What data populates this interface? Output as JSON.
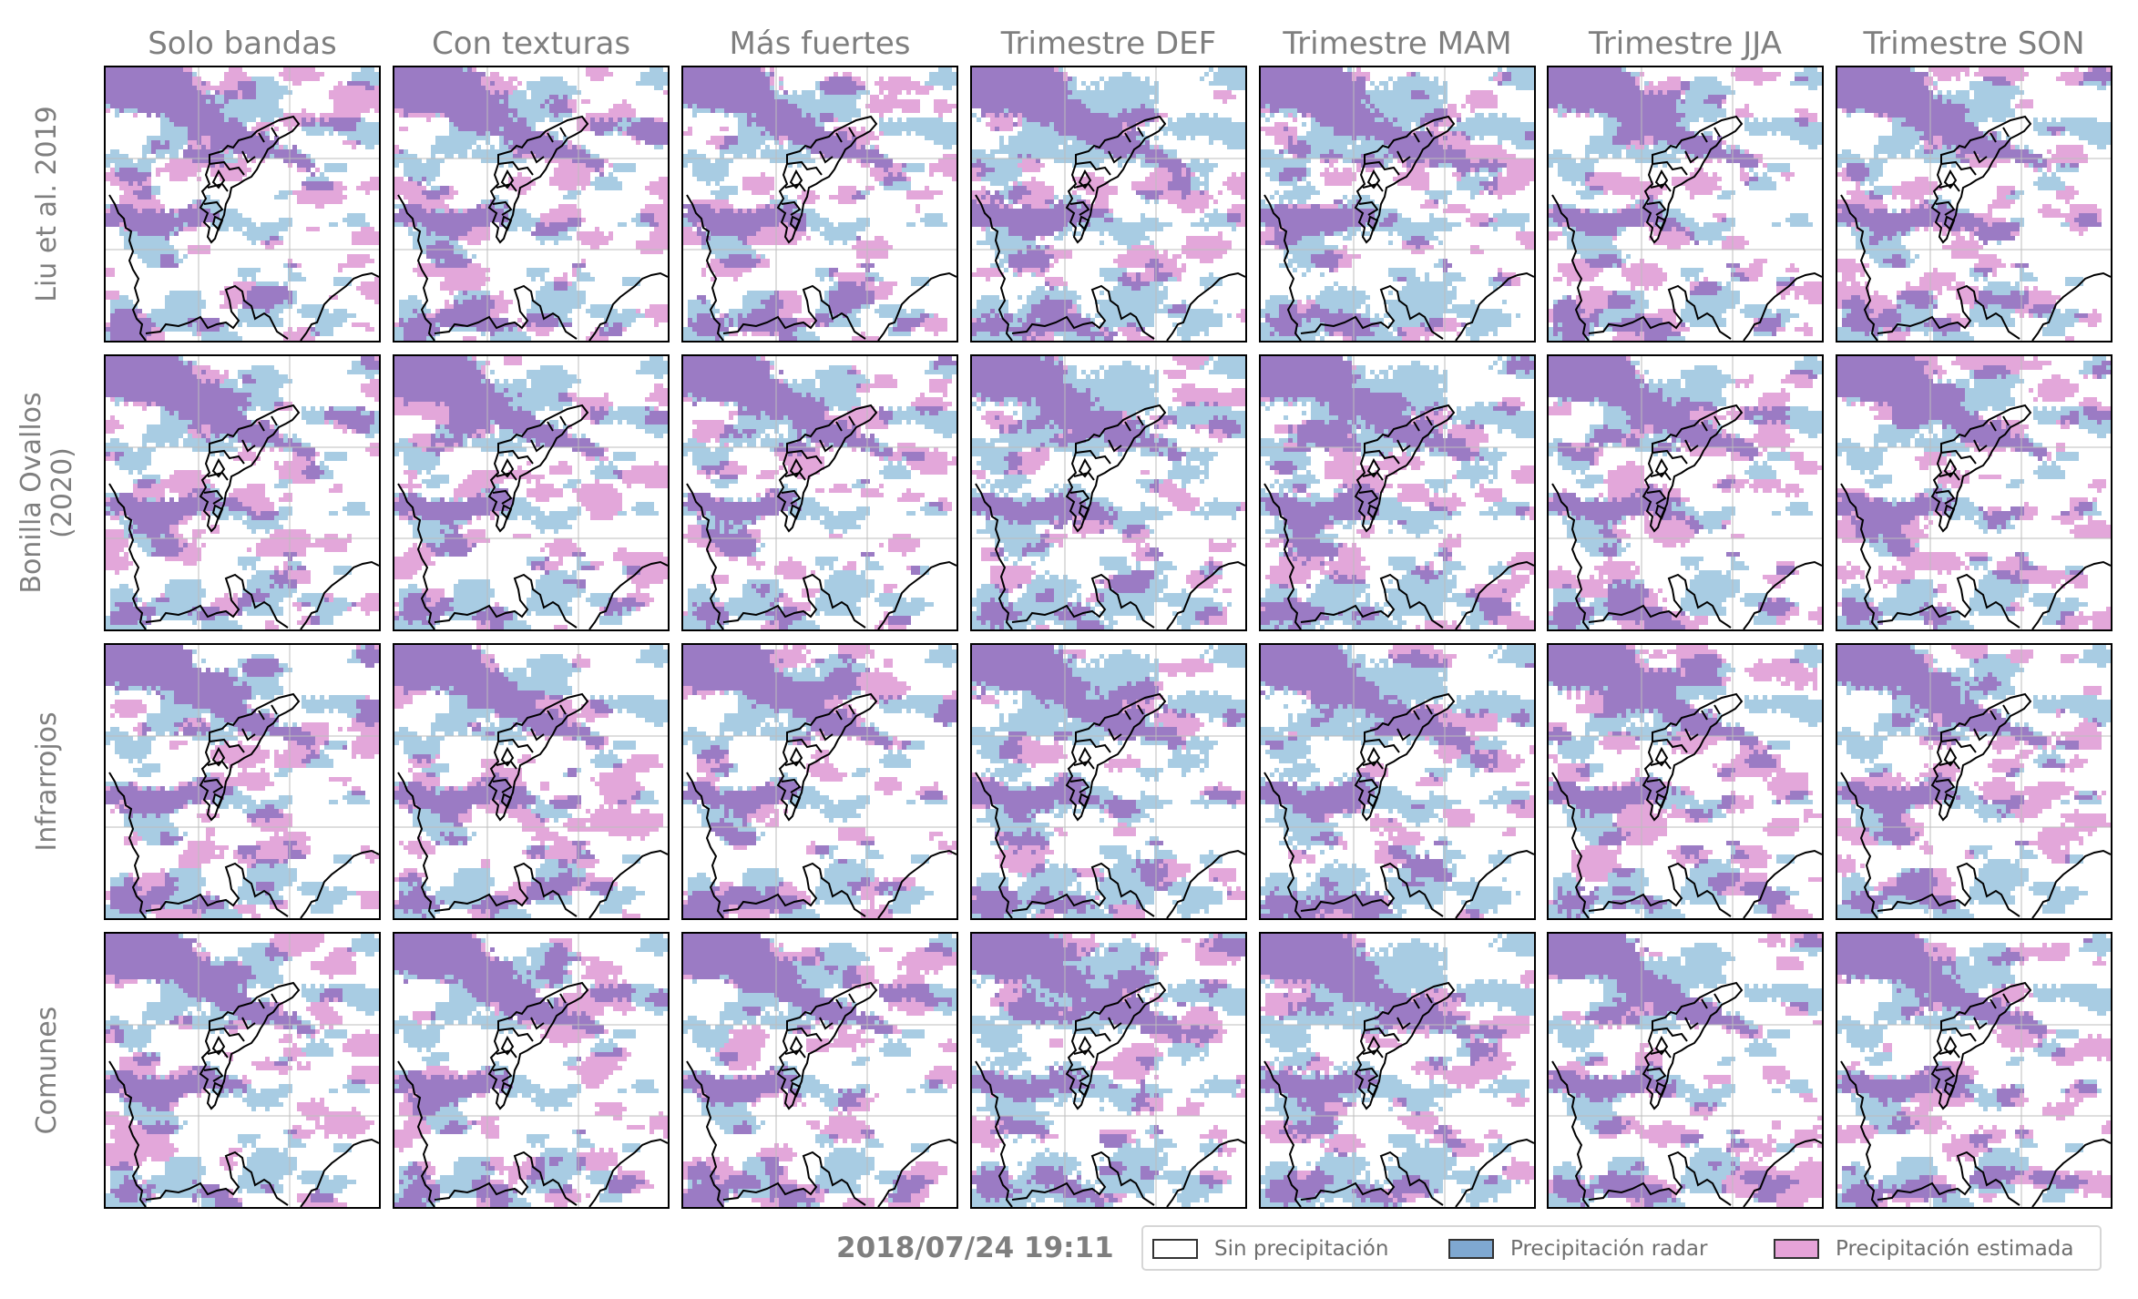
{
  "columns": [
    "Solo bandas",
    "Con texturas",
    "Más fuertes",
    "Trimestre DEF",
    "Trimestre MAM",
    "Trimestre JJA",
    "Trimestre SON"
  ],
  "rows": [
    "Liu et al. 2019",
    "Bonilla Ovallos\n(2020)",
    "Infrarrojos",
    "Comunes"
  ],
  "timestamp": "2018/07/24 19:11",
  "legend": [
    {
      "label": "Sin precipitación",
      "color": "#ffffff"
    },
    {
      "label": "Precipitación radar",
      "color": "#7fa8d1"
    },
    {
      "label": "Precipitación estimada",
      "color": "#e6a3d8"
    }
  ],
  "colors": {
    "radar_only": "#a8cce3",
    "estimated_only": "#e3a7da",
    "both": "#9b7bc4",
    "border": "#000000",
    "grid": "#bdbdbd"
  }
}
